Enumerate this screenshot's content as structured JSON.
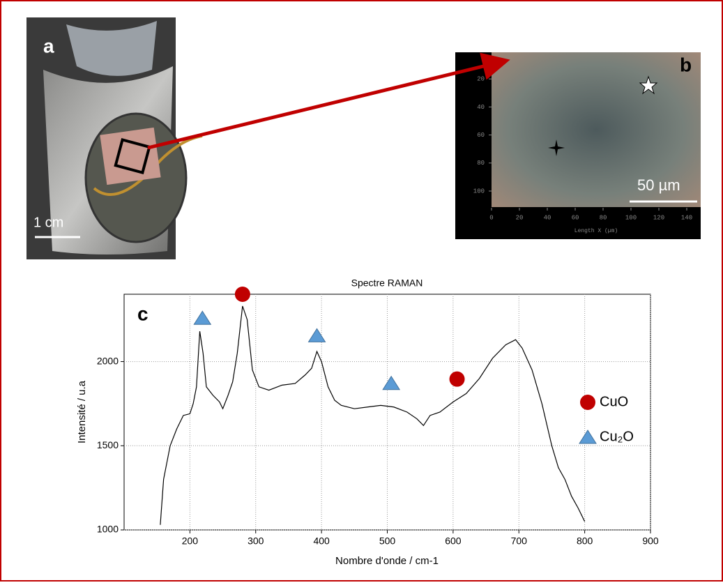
{
  "panel_a": {
    "label": "a",
    "scale_bar": "1 cm"
  },
  "panel_b": {
    "label": "b",
    "scale_bar": "50 µm",
    "xlabel": "Length X (µm)",
    "xticks": [
      0,
      20,
      40,
      60,
      80,
      100,
      120,
      140
    ],
    "yticks": [
      20,
      40,
      60,
      80,
      100
    ]
  },
  "chart_data": {
    "type": "line",
    "panel_label": "c",
    "title": "Spectre RAMAN",
    "xlabel": "Nombre d'onde / cm-1",
    "ylabel": "Intensité / u.a",
    "xlim": [
      100,
      900
    ],
    "ylim": [
      1000,
      2400
    ],
    "xticks": [
      200,
      300,
      400,
      500,
      600,
      700,
      800,
      900
    ],
    "yticks": [
      1000,
      1500,
      2000
    ],
    "grid": true,
    "color": "#000000",
    "x": [
      155,
      160,
      170,
      180,
      190,
      200,
      205,
      210,
      215,
      220,
      225,
      235,
      245,
      250,
      258,
      265,
      272,
      280,
      287,
      295,
      305,
      320,
      340,
      360,
      375,
      385,
      393,
      400,
      410,
      420,
      430,
      450,
      470,
      490,
      510,
      530,
      545,
      555,
      565,
      580,
      600,
      620,
      640,
      660,
      680,
      695,
      705,
      720,
      735,
      750,
      760,
      770,
      780,
      790,
      800
    ],
    "values": [
      1030,
      1300,
      1500,
      1600,
      1680,
      1690,
      1750,
      1850,
      2180,
      2050,
      1850,
      1800,
      1760,
      1720,
      1800,
      1880,
      2050,
      2330,
      2250,
      1950,
      1850,
      1830,
      1860,
      1870,
      1920,
      1960,
      2060,
      2000,
      1850,
      1770,
      1740,
      1720,
      1730,
      1740,
      1730,
      1700,
      1660,
      1620,
      1680,
      1700,
      1760,
      1810,
      1900,
      2020,
      2100,
      2130,
      2080,
      1950,
      1750,
      1500,
      1370,
      1300,
      1200,
      1130,
      1050
    ],
    "series": [
      {
        "name": "CuO",
        "color": "#c00000",
        "marker": "circle",
        "x": [
          280,
          606
        ],
        "values": [
          2400,
          1896
        ]
      },
      {
        "name": "Cu₂O",
        "color": "#5b9bd5",
        "marker": "triangle",
        "x": [
          219,
          393,
          506
        ],
        "values": [
          2258,
          2154,
          1871
        ]
      }
    ]
  }
}
